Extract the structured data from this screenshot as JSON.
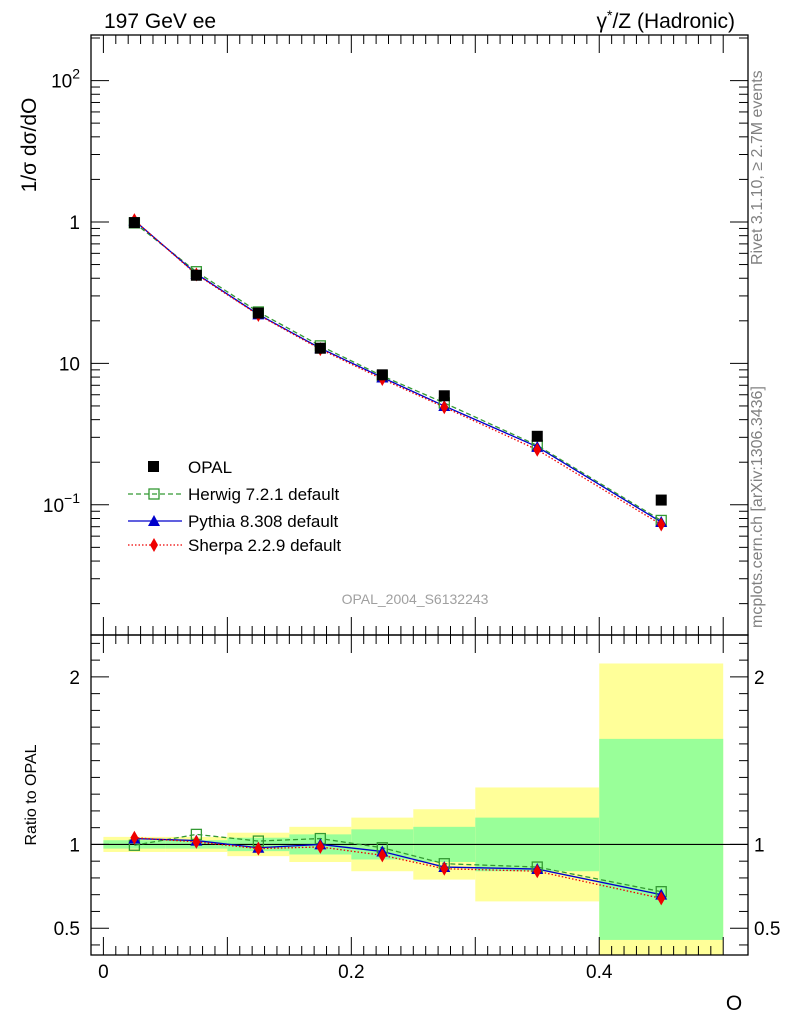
{
  "header": {
    "left_title": "197 GeV ee",
    "right_title_base": "γ",
    "right_title_sup": "*",
    "right_title_rest": "/Z (Hadronic)"
  },
  "side_text": {
    "rivet": "Rivet 3.1.10, ≥ 2.7M events",
    "mcplots": "mcplots.cern.ch [arXiv:1306.3436]"
  },
  "watermark": "OPAL_2004_S6132243",
  "colors": {
    "data": "#000000",
    "herwig": "#339933",
    "pythia": "#0000cc",
    "sherpa": "#ee0000",
    "band_outer": "#ffff99",
    "band_inner": "#99ff99"
  },
  "chart_data": [
    {
      "type": "line",
      "panel": "main",
      "ylabel_base": "1/σ dσ/dO",
      "yscale": "log",
      "xlim": [
        -0.01,
        0.52
      ],
      "ylim": [
        0.012,
        210
      ],
      "y_tick_labels": [
        "10",
        "1",
        "10",
        "1",
        "10"
      ],
      "y_tick_exponents": [
        "2",
        "",
        "",
        "",
        "−1"
      ],
      "x_bins": [
        [
          0.0,
          0.05
        ],
        [
          0.05,
          0.1
        ],
        [
          0.1,
          0.15
        ],
        [
          0.15,
          0.2
        ],
        [
          0.2,
          0.25
        ],
        [
          0.25,
          0.3
        ],
        [
          0.3,
          0.4
        ],
        [
          0.4,
          0.5
        ]
      ],
      "x": [
        0.025,
        0.075,
        0.125,
        0.175,
        0.225,
        0.275,
        0.35,
        0.45
      ],
      "series": [
        {
          "name": "OPAL",
          "values": [
            9.9,
            4.2,
            2.27,
            1.28,
            0.83,
            0.59,
            0.305,
            0.108
          ]
        },
        {
          "name": "Herwig 7.2.1 default",
          "values": [
            9.85,
            4.45,
            2.31,
            1.33,
            0.815,
            0.525,
            0.263,
            0.0775
          ]
        },
        {
          "name": "Pythia 8.308 default",
          "values": [
            10.25,
            4.3,
            2.22,
            1.28,
            0.795,
            0.5,
            0.257,
            0.0755
          ]
        },
        {
          "name": "Sherpa 2.2.9 default",
          "values": [
            10.3,
            4.25,
            2.2,
            1.26,
            0.775,
            0.49,
            0.245,
            0.0725
          ]
        }
      ],
      "legend": "lower-left"
    },
    {
      "type": "line",
      "panel": "ratio",
      "ylabel": "Ratio to OPAL",
      "xlabel": "O",
      "xlim": [
        -0.01,
        0.52
      ],
      "ylim": [
        0.34,
        2.25
      ],
      "y_tick_labels": [
        "2",
        "1",
        "0.5"
      ],
      "x_tick_labels": [
        "0",
        "0.2",
        "0.4"
      ],
      "x": [
        0.025,
        0.075,
        0.125,
        0.175,
        0.225,
        0.275,
        0.35,
        0.45
      ],
      "band_outer": [
        [
          0.955,
          1.045
        ],
        [
          0.955,
          1.045
        ],
        [
          0.93,
          1.07
        ],
        [
          0.895,
          1.105
        ],
        [
          0.84,
          1.16
        ],
        [
          0.79,
          1.21
        ],
        [
          0.66,
          1.34
        ],
        [
          0.34,
          2.08
        ]
      ],
      "band_inner": [
        [
          0.975,
          1.025
        ],
        [
          0.975,
          1.025
        ],
        [
          0.96,
          1.04
        ],
        [
          0.94,
          1.06
        ],
        [
          0.91,
          1.09
        ],
        [
          0.895,
          1.105
        ],
        [
          0.84,
          1.16
        ],
        [
          0.43,
          1.63
        ]
      ],
      "series": [
        {
          "name": "Herwig 7.2.1 default",
          "values": [
            0.995,
            1.06,
            1.02,
            1.035,
            0.98,
            0.885,
            0.865,
            0.718
          ]
        },
        {
          "name": "Pythia 8.308 default",
          "values": [
            1.035,
            1.023,
            0.98,
            1.0,
            0.958,
            0.865,
            0.853,
            0.7
          ]
        },
        {
          "name": "Sherpa 2.2.9 default",
          "values": [
            1.04,
            1.015,
            0.975,
            0.985,
            0.935,
            0.855,
            0.84,
            0.678
          ]
        }
      ]
    }
  ]
}
